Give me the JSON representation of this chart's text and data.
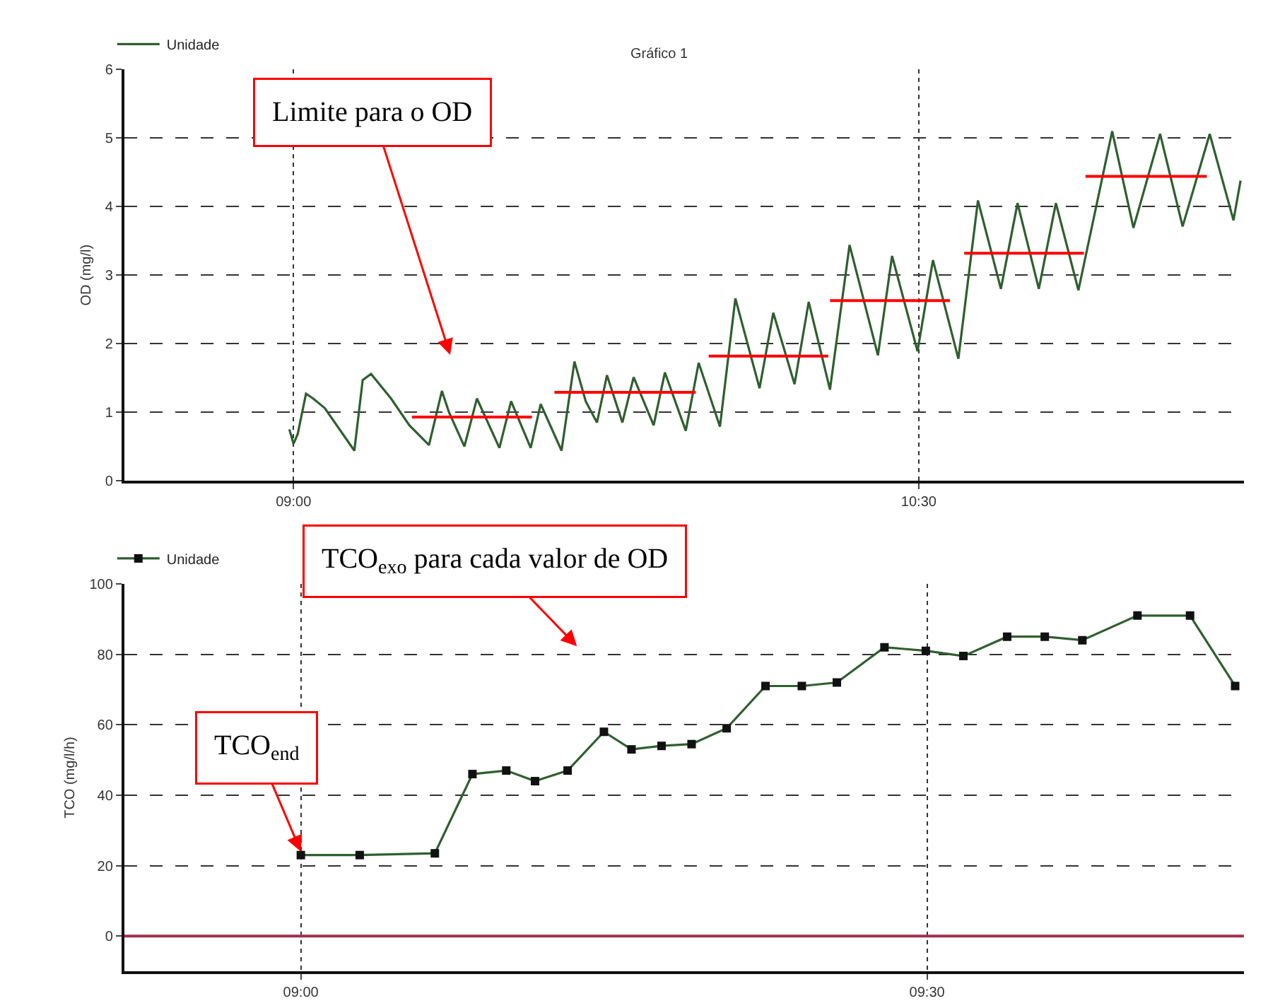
{
  "chart_data": [
    {
      "type": "line",
      "title": "Gráfico 1",
      "ylabel": "OD (mg/l)",
      "xlim": [
        8.594,
        11.28
      ],
      "ylim": [
        0,
        6
      ],
      "xticks": [
        {
          "value": 9,
          "label": "09:00"
        },
        {
          "value": 10.5,
          "label": "10:30"
        }
      ],
      "yticks": [
        0,
        1,
        2,
        3,
        4,
        5,
        6
      ],
      "grid": true,
      "legend": "top left",
      "marker": "none",
      "line_style": "solid",
      "annotations": [
        "Limite para o OD"
      ],
      "series": [
        {
          "name": "Unidade",
          "color": "#2f5f2f",
          "x": [
            8.99,
            9.0,
            9.01,
            9.03,
            9.047,
            9.075,
            9.146,
            9.166,
            9.186,
            9.234,
            9.278,
            9.325,
            9.356,
            9.373,
            9.41,
            9.44,
            9.494,
            9.522,
            9.569,
            9.593,
            9.643,
            9.674,
            9.701,
            9.728,
            9.752,
            9.789,
            9.816,
            9.864,
            9.891,
            9.941,
            9.972,
            10.023,
            10.06,
            10.118,
            10.151,
            10.202,
            10.236,
            10.287,
            10.334,
            10.402,
            10.436,
            10.497,
            10.534,
            10.595,
            10.642,
            10.697,
            10.737,
            10.788,
            10.829,
            10.883,
            10.964,
            11.015,
            11.079,
            11.133,
            11.198,
            11.255,
            11.272
          ],
          "values": [
            0.75,
            0.54,
            0.68,
            1.27,
            1.2,
            1.06,
            0.44,
            1.47,
            1.56,
            1.2,
            0.81,
            0.52,
            1.31,
            1.0,
            0.5,
            1.2,
            0.48,
            1.16,
            0.48,
            1.12,
            0.44,
            1.74,
            1.16,
            0.85,
            1.54,
            0.85,
            1.51,
            0.81,
            1.58,
            0.73,
            1.72,
            0.79,
            2.66,
            1.35,
            2.45,
            1.41,
            2.61,
            1.33,
            3.44,
            1.83,
            3.28,
            1.89,
            3.22,
            1.78,
            4.09,
            2.8,
            4.05,
            2.8,
            4.05,
            2.78,
            5.1,
            3.69,
            5.06,
            3.71,
            5.06,
            3.8,
            4.38
          ]
        },
        {
          "color": "#ff0000",
          "x": [
            9.284,
            9.572
          ],
          "values": [
            0.93,
            0.93
          ]
        },
        {
          "color": "#ff0000",
          "x": [
            9.626,
            9.965
          ],
          "values": [
            1.29,
            1.29
          ]
        },
        {
          "color": "#ff0000",
          "x": [
            9.996,
            10.283
          ],
          "values": [
            1.82,
            1.82
          ]
        },
        {
          "color": "#ff0000",
          "x": [
            10.287,
            10.575
          ],
          "values": [
            2.63,
            2.63
          ]
        },
        {
          "color": "#ff0000",
          "x": [
            10.609,
            10.896
          ],
          "values": [
            3.32,
            3.32
          ]
        },
        {
          "color": "#ff0000",
          "x": [
            10.9,
            11.191
          ],
          "values": [
            4.44,
            4.44
          ]
        }
      ]
    },
    {
      "type": "line",
      "ylabel": "TCO (mg/l/h)",
      "xlim": [
        8.859,
        9.753
      ],
      "ylim": [
        -10,
        100
      ],
      "xticks": [
        {
          "value": 9,
          "label": "09:00"
        },
        {
          "value": 9.5,
          "label": "09:30"
        }
      ],
      "yticks": [
        0,
        20,
        40,
        60,
        80,
        100
      ],
      "grid": true,
      "legend": "top left",
      "marker": "square",
      "line_style": "solid",
      "ref_lines": [
        {
          "axis": "y",
          "value": 0,
          "color": "#a0304a"
        }
      ],
      "annotations": [
        "TCO$_{exo}$ para cada valor de OD",
        {
          "text": "TCO$_{end}$",
          "x": 9.0,
          "y": 24
        }
      ],
      "series": [
        {
          "name": "Unidade",
          "color": "#2f5f2f",
          "x": [
            9.0,
            9.047,
            9.107,
            9.137,
            9.164,
            9.187,
            9.213,
            9.242,
            9.264,
            9.288,
            9.312,
            9.34,
            9.371,
            9.4,
            9.428,
            9.466,
            9.499,
            9.529,
            9.564,
            9.594,
            9.624,
            9.668,
            9.71,
            9.746
          ],
          "values": [
            23,
            23,
            23.5,
            46,
            47,
            44,
            47,
            58,
            53,
            54,
            54.5,
            59,
            71,
            71,
            72,
            82,
            81,
            79.5,
            85,
            85,
            84,
            91,
            91,
            71
          ]
        }
      ]
    }
  ]
}
